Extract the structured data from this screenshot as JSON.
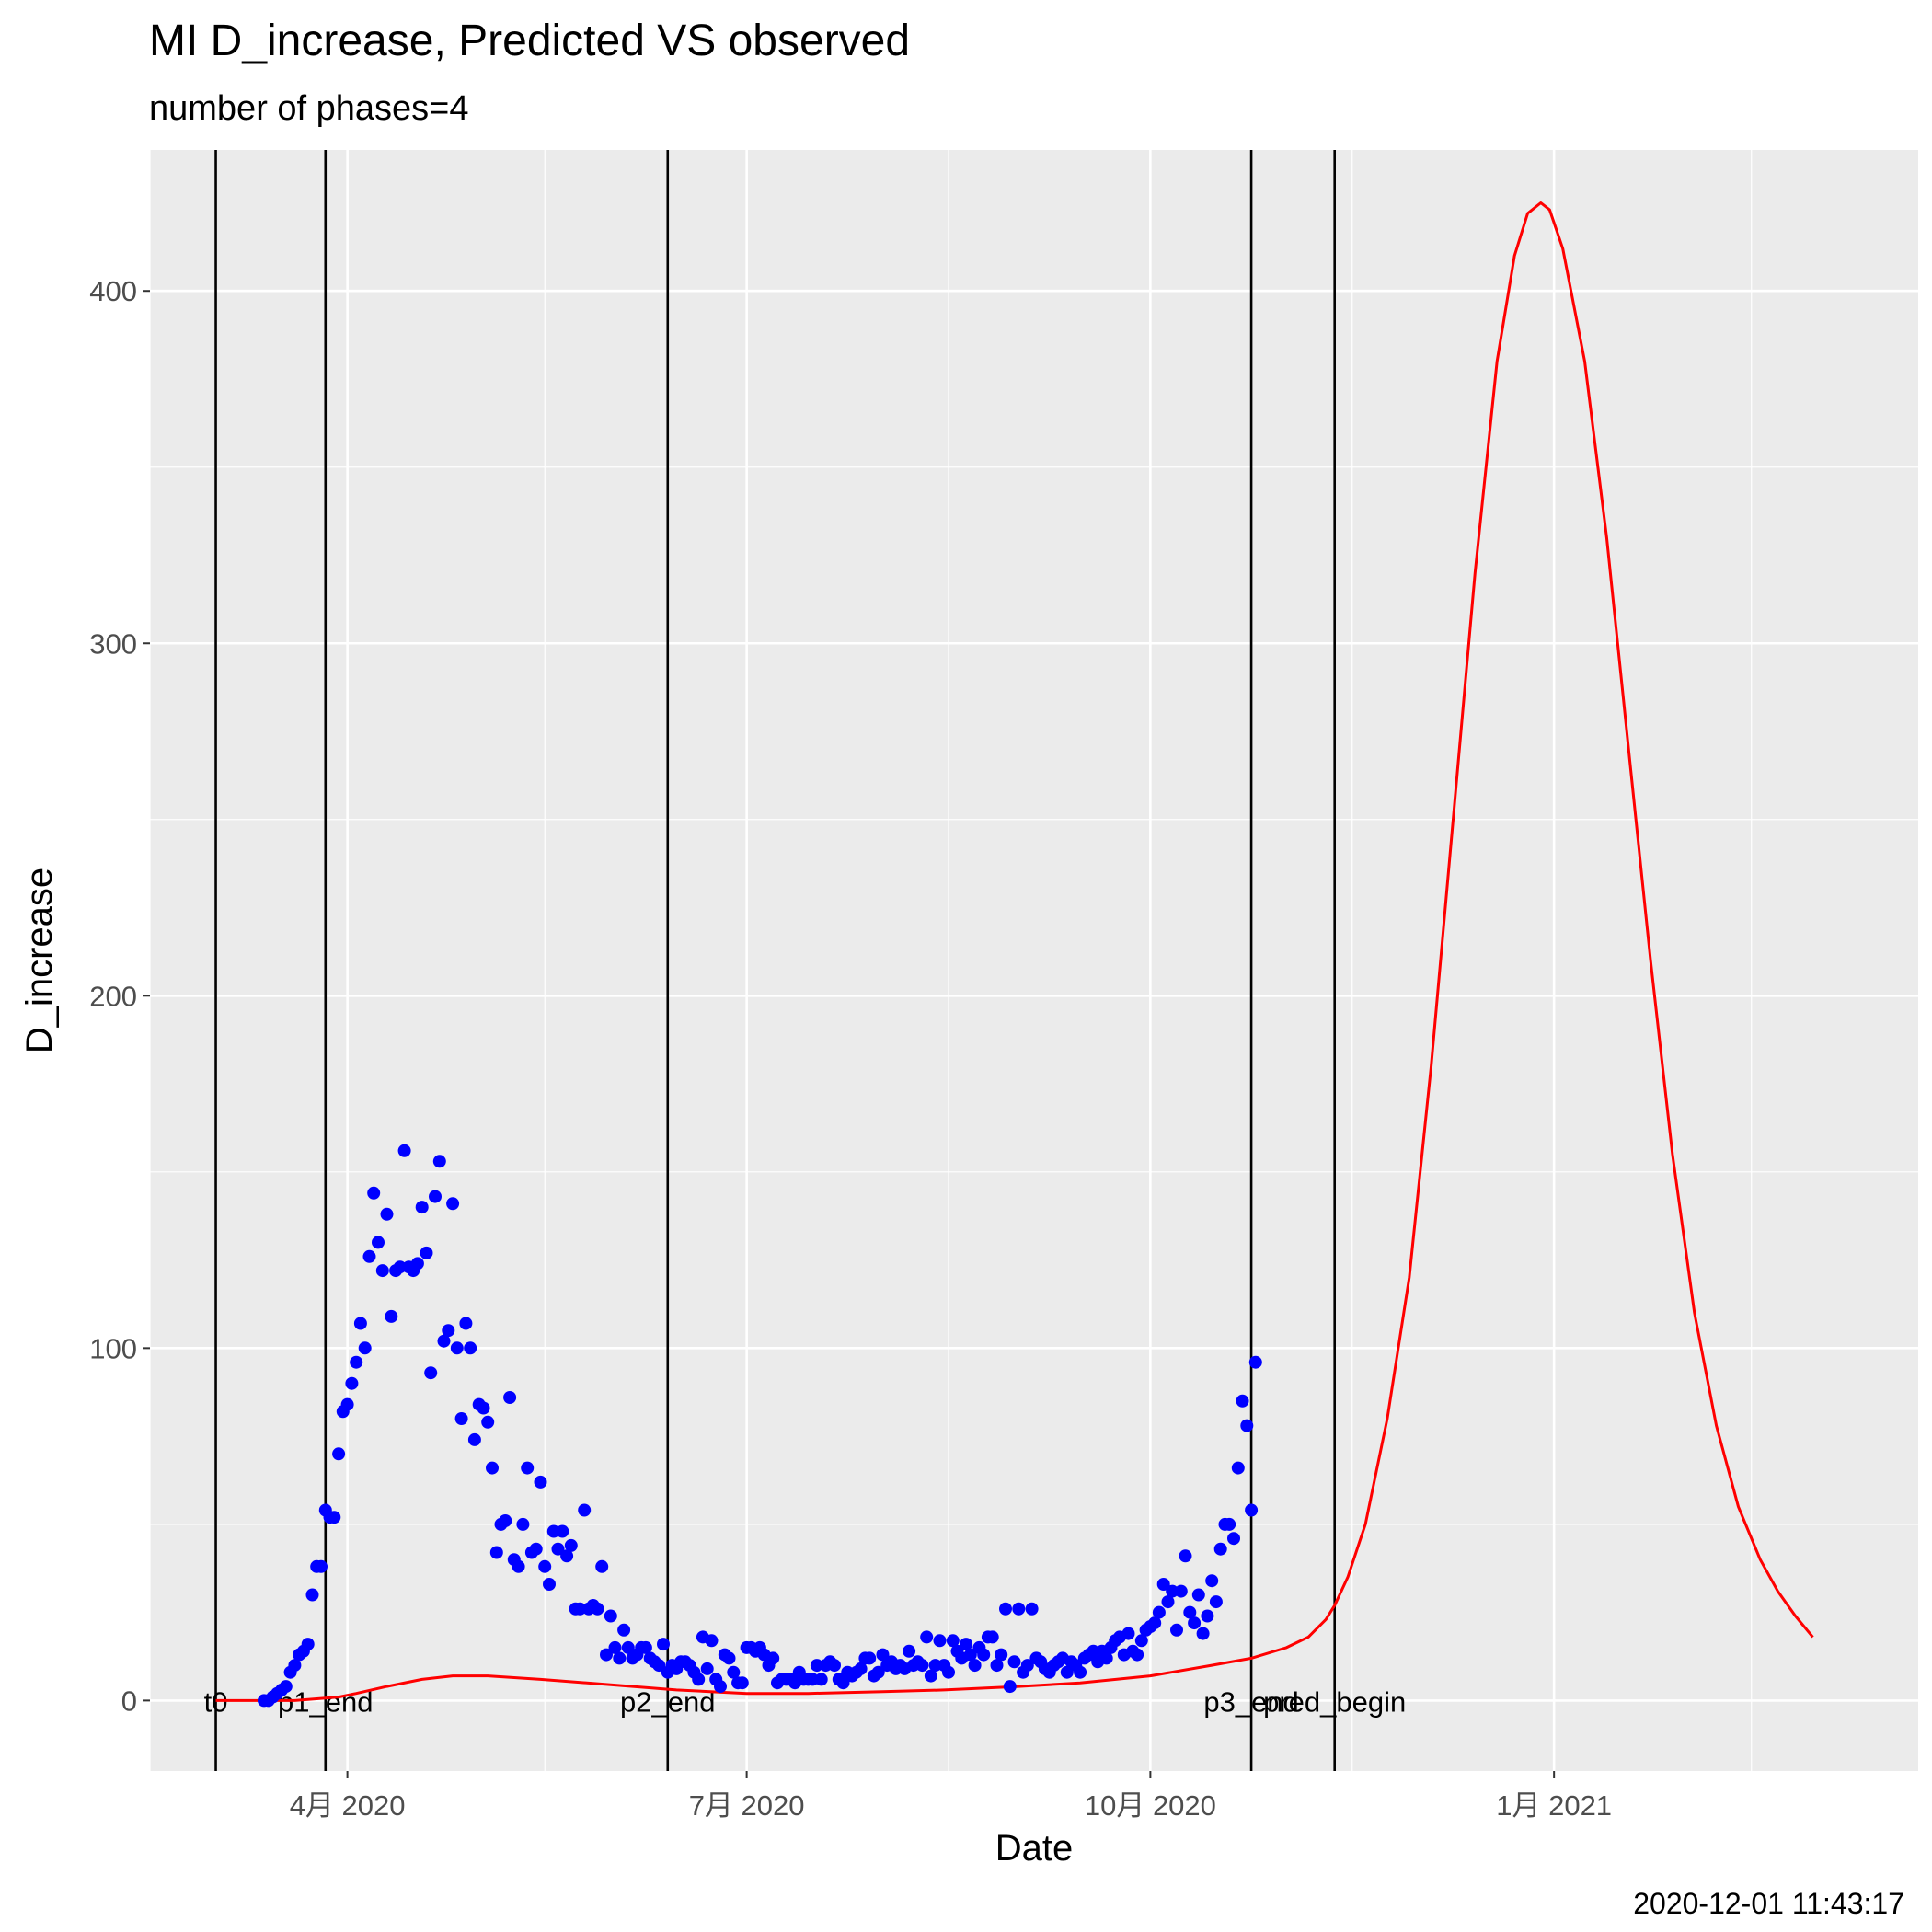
{
  "chart_data": {
    "type": "line",
    "title": "MI D_increase, Predicted VS observed",
    "subtitle": "number of phases=4",
    "xlabel": "Date",
    "ylabel": "D_increase",
    "caption": "2020-12-01 11:43:17",
    "x_scale": "date",
    "xlim": [
      "2020-02-16",
      "2021-03-25"
    ],
    "ylim": [
      -20,
      440
    ],
    "x_ticks": [
      {
        "date": "2020-04-01",
        "label": "4月 2020"
      },
      {
        "date": "2020-07-01",
        "label": "7月 2020"
      },
      {
        "date": "2020-10-01",
        "label": "10月 2020"
      },
      {
        "date": "2021-01-01",
        "label": "1月 2021"
      }
    ],
    "x_minor_ticks": [
      "2020-02-16",
      "2020-05-16",
      "2020-08-16",
      "2020-11-16",
      "2021-02-15"
    ],
    "y_ticks": [
      0,
      100,
      200,
      300,
      400
    ],
    "y_minor_ticks": [
      50,
      150,
      250,
      350
    ],
    "grid": true,
    "phase_lines": [
      {
        "date": "2020-03-02",
        "label": "t0"
      },
      {
        "date": "2020-03-27",
        "label": "p1_end"
      },
      {
        "date": "2020-06-13",
        "label": "p2_end"
      },
      {
        "date": "2020-10-24",
        "label": "p3_end"
      },
      {
        "date": "2020-11-12",
        "label": "pred_begin"
      }
    ],
    "series": [
      {
        "kind": "scatter",
        "color": "#0000FF",
        "x_start": "2020-03-13",
        "values": [
          0,
          0,
          1,
          2,
          3,
          4,
          8,
          10,
          13,
          14,
          16,
          30,
          38,
          38,
          54,
          52,
          52,
          70,
          82,
          84,
          90,
          96,
          107,
          100,
          126,
          144,
          130,
          122,
          138,
          109,
          122,
          123,
          156,
          123,
          122,
          124,
          140,
          127,
          93,
          143,
          153,
          102,
          105,
          141,
          100,
          80,
          107,
          100,
          74,
          84,
          83,
          79,
          66,
          42,
          50,
          51,
          86,
          40,
          38,
          50,
          66,
          42,
          43,
          62,
          38,
          33,
          48,
          43,
          48,
          41,
          44,
          26,
          26,
          54,
          26,
          27,
          26,
          38,
          13,
          24,
          15,
          12,
          20,
          15,
          12,
          13,
          15,
          15,
          12,
          11,
          10,
          16,
          8,
          10,
          9,
          11,
          11,
          10,
          8,
          6,
          18,
          9,
          17,
          6,
          4,
          13,
          12,
          8,
          5,
          5,
          15,
          15,
          14,
          15,
          13,
          10,
          12,
          5,
          6,
          6,
          6,
          5,
          8,
          6,
          6,
          6,
          10,
          6,
          10,
          11,
          10,
          6,
          5,
          8,
          7,
          8,
          9,
          12,
          12,
          7,
          8,
          13,
          10,
          11,
          9,
          10,
          9,
          14,
          10,
          11,
          10,
          18,
          7,
          10,
          17,
          10,
          8,
          17,
          14,
          12,
          16,
          13,
          10,
          15,
          13,
          18,
          18,
          10,
          13,
          26,
          4,
          11,
          26,
          8,
          10,
          26,
          12,
          11,
          9,
          8,
          10,
          11,
          12,
          8,
          11,
          10,
          8,
          12,
          13,
          14,
          11,
          14,
          12,
          15,
          17,
          18,
          13,
          19,
          14,
          13,
          17,
          20,
          21,
          22,
          25,
          33,
          28,
          31,
          20,
          31,
          41,
          25,
          22,
          30,
          19,
          24,
          34,
          28,
          43,
          50,
          50,
          46,
          66,
          85,
          78,
          54,
          96
        ]
      },
      {
        "kind": "line",
        "color": "#FF0000",
        "points": [
          [
            "2020-03-02",
            0
          ],
          [
            "2020-03-20",
            0
          ],
          [
            "2020-03-30",
            1
          ],
          [
            "2020-04-03",
            2
          ],
          [
            "2020-04-10",
            4
          ],
          [
            "2020-04-18",
            6
          ],
          [
            "2020-04-25",
            7
          ],
          [
            "2020-05-03",
            7
          ],
          [
            "2020-05-15",
            6
          ],
          [
            "2020-05-31",
            4.5
          ],
          [
            "2020-06-15",
            3
          ],
          [
            "2020-07-01",
            2
          ],
          [
            "2020-07-15",
            2
          ],
          [
            "2020-08-01",
            2.5
          ],
          [
            "2020-08-15",
            3
          ],
          [
            "2020-09-01",
            4
          ],
          [
            "2020-09-15",
            5
          ],
          [
            "2020-10-01",
            7
          ],
          [
            "2020-10-15",
            10
          ],
          [
            "2020-10-24",
            12
          ],
          [
            "2020-11-01",
            15
          ],
          [
            "2020-11-06",
            18
          ],
          [
            "2020-11-10",
            23
          ],
          [
            "2020-11-12",
            27
          ],
          [
            "2020-11-15",
            35
          ],
          [
            "2020-11-19",
            50
          ],
          [
            "2020-11-24",
            80
          ],
          [
            "2020-11-29",
            120
          ],
          [
            "2020-12-04",
            180
          ],
          [
            "2020-12-09",
            250
          ],
          [
            "2020-12-14",
            320
          ],
          [
            "2020-12-19",
            380
          ],
          [
            "2020-12-23",
            410
          ],
          [
            "2020-12-26",
            422
          ],
          [
            "2020-12-29",
            425
          ],
          [
            "2020-12-31",
            423
          ],
          [
            "2021-01-03",
            412
          ],
          [
            "2021-01-08",
            380
          ],
          [
            "2021-01-13",
            330
          ],
          [
            "2021-01-18",
            270
          ],
          [
            "2021-01-23",
            210
          ],
          [
            "2021-01-28",
            155
          ],
          [
            "2021-02-02",
            110
          ],
          [
            "2021-02-07",
            78
          ],
          [
            "2021-02-12",
            55
          ],
          [
            "2021-02-17",
            40
          ],
          [
            "2021-02-21",
            31
          ],
          [
            "2021-02-25",
            24
          ],
          [
            "2021-03-01",
            18
          ]
        ]
      }
    ]
  },
  "colors": {
    "panel_background": "#EBEBEB",
    "grid_major": "#FFFFFF",
    "observed": "#0000FF",
    "predicted": "#FF0000",
    "phase_line": "#000000"
  }
}
